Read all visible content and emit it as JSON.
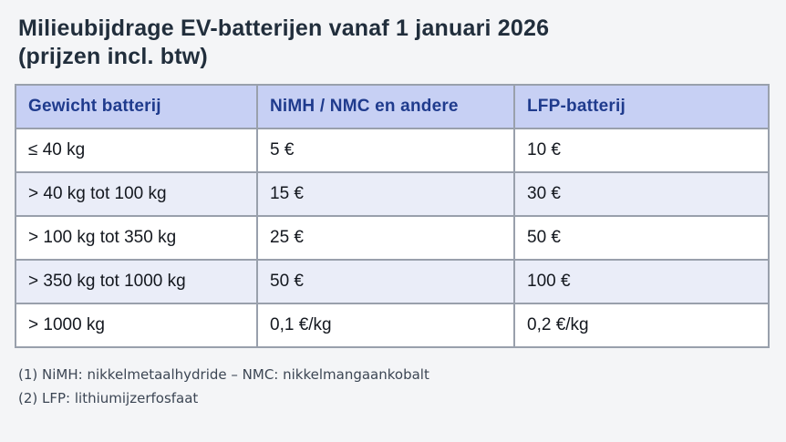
{
  "title": {
    "line1": "Milieubijdrage EV-batterijen vanaf 1 januari 2026",
    "line2": "(prijzen incl. btw)"
  },
  "table": {
    "headers": [
      "Gewicht batterij",
      "NiMH / NMC en andere",
      "LFP-batterij"
    ],
    "rows": [
      [
        "≤ 40 kg",
        "5 €",
        "10 €"
      ],
      [
        "> 40 kg tot 100 kg",
        "15 €",
        "30 €"
      ],
      [
        "> 100 kg tot 350 kg",
        "25 €",
        "50 €"
      ],
      [
        "> 350 kg tot 1000 kg",
        "50 €",
        "100 €"
      ],
      [
        "> 1000 kg",
        "0,1 €/kg",
        "0,2 €/kg"
      ]
    ]
  },
  "footnotes": [
    "(1) NiMH: nikkelmetaalhydride – NMC: nikkelmangaankobalt",
    "(2) LFP: lithiumijzerfosfaat"
  ],
  "colors": {
    "page_bg": "#f4f5f7",
    "title_color": "#212e3c",
    "header_bg": "#c7d0f4",
    "header_text": "#1f3b8d",
    "border_color": "#99a0ac",
    "row_alt_bg": "#eaedf8",
    "cell_text": "#14181f",
    "footnote_color": "#3c4654"
  }
}
